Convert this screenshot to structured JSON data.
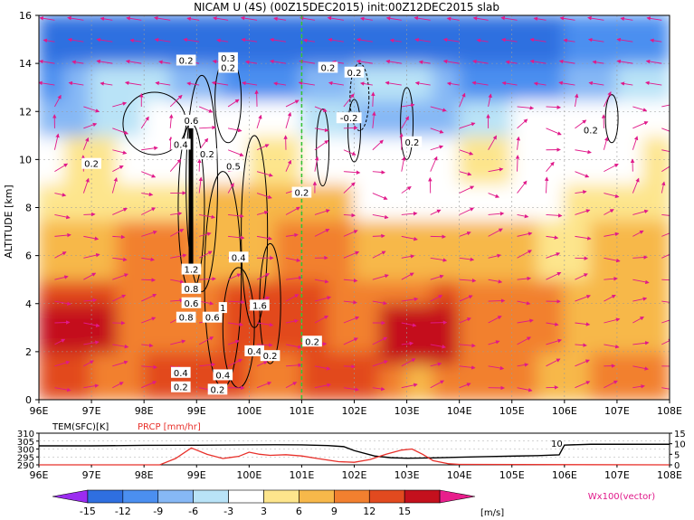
{
  "title": "NICAM U (4S) (00Z15DEC2015) init:00Z12DEC2015 slab",
  "chart_data": [
    {
      "type": "heatmap",
      "title": "NICAM U (4S) (00Z15DEC2015) init:00Z12DEC2015 slab",
      "ylabel": "ALTITUDE [km]",
      "x_ticks": [
        "96E",
        "97E",
        "98E",
        "99E",
        "100E",
        "101E",
        "102E",
        "103E",
        "104E",
        "105E",
        "106E",
        "107E",
        "108E"
      ],
      "y_ticks": [
        "0",
        "2",
        "4",
        "6",
        "8",
        "10",
        "12",
        "14",
        "16"
      ],
      "xlim": [
        96,
        108
      ],
      "ylim": [
        0,
        16
      ],
      "grid": true,
      "marker_line_lon": 101,
      "contour_labels": [
        {
          "text": "0.2",
          "lon": 98.8,
          "alt": 14.1
        },
        {
          "text": "0.3",
          "lon": 99.6,
          "alt": 14.2
        },
        {
          "text": "0.2",
          "lon": 99.6,
          "alt": 13.8
        },
        {
          "text": "0.2",
          "lon": 101.5,
          "alt": 13.8
        },
        {
          "text": "0.2",
          "lon": 102.0,
          "alt": 13.6
        },
        {
          "text": "-0.2",
          "lon": 101.9,
          "alt": 11.7
        },
        {
          "text": "0.2",
          "lon": 103.1,
          "alt": 10.7
        },
        {
          "text": "0.2",
          "lon": 106.5,
          "alt": 11.2
        },
        {
          "text": "0.6",
          "lon": 98.9,
          "alt": 11.6
        },
        {
          "text": "0.4",
          "lon": 98.7,
          "alt": 10.6
        },
        {
          "text": "0.2",
          "lon": 97.0,
          "alt": 9.8
        },
        {
          "text": "0.2",
          "lon": 99.2,
          "alt": 10.2
        },
        {
          "text": "0.5",
          "lon": 99.7,
          "alt": 9.7
        },
        {
          "text": "0.2",
          "lon": 101.0,
          "alt": 8.6
        },
        {
          "text": "0.4",
          "lon": 99.8,
          "alt": 5.9
        },
        {
          "text": "1.2",
          "lon": 98.9,
          "alt": 5.4
        },
        {
          "text": "0.8",
          "lon": 98.9,
          "alt": 4.6
        },
        {
          "text": "0.6",
          "lon": 98.9,
          "alt": 4.0
        },
        {
          "text": "0.6",
          "lon": 99.3,
          "alt": 3.4
        },
        {
          "text": "0.8",
          "lon": 98.8,
          "alt": 3.4
        },
        {
          "text": "1",
          "lon": 99.5,
          "alt": 3.8
        },
        {
          "text": "1.6",
          "lon": 100.2,
          "alt": 3.9
        },
        {
          "text": "0.2",
          "lon": 101.2,
          "alt": 2.4
        },
        {
          "text": "0.4",
          "lon": 100.1,
          "alt": 2.0
        },
        {
          "text": "0.2",
          "lon": 100.4,
          "alt": 1.8
        },
        {
          "text": "0.4",
          "lon": 98.7,
          "alt": 1.1
        },
        {
          "text": "0.4",
          "lon": 99.5,
          "alt": 1.0
        },
        {
          "text": "0.2",
          "lon": 98.7,
          "alt": 0.5
        },
        {
          "text": "0.2",
          "lon": 99.4,
          "alt": 0.4
        }
      ],
      "colorbar": {
        "ticks": [
          "-15",
          "-12",
          "-9",
          "-6",
          "-3",
          "3",
          "6",
          "9",
          "12",
          "15"
        ],
        "colors": [
          "#9b2cf0",
          "#2f6fe0",
          "#4b8ff0",
          "#86b8f5",
          "#b9e3f7",
          "#ffffff",
          "#fde58c",
          "#f7b84a",
          "#f2802f",
          "#e24a1f",
          "#c4101d",
          "#e81e8c"
        ],
        "unit": "[m/s]"
      },
      "vector_label": "Wx100(vector)"
    },
    {
      "type": "line",
      "series": [
        {
          "name": "TEM(SFC)[K]",
          "color": "#000000"
        },
        {
          "name": "PRCP [mm/hr]",
          "color": "#e8302a"
        }
      ],
      "left_ticks": [
        "310",
        "305",
        "300",
        "295",
        "290"
      ],
      "right_ticks": [
        "15",
        "10",
        "5",
        "0"
      ],
      "x_ticks": [
        "96E",
        "97E",
        "98E",
        "99E",
        "100E",
        "101E",
        "102E",
        "103E",
        "104E",
        "105E",
        "106E",
        "107E",
        "108E"
      ],
      "annotation": "10",
      "tem_points": [
        [
          96,
          302
        ],
        [
          97,
          302
        ],
        [
          98,
          302.3
        ],
        [
          99,
          302.4
        ],
        [
          100,
          302.6
        ],
        [
          100.5,
          302.7
        ],
        [
          101,
          302.6
        ],
        [
          101.5,
          302.2
        ],
        [
          101.8,
          301.5
        ],
        [
          102,
          299
        ],
        [
          102.4,
          295.5
        ],
        [
          102.7,
          294.5
        ],
        [
          103,
          294.2
        ],
        [
          103.5,
          294.4
        ],
        [
          104,
          294.8
        ],
        [
          104.5,
          295.2
        ],
        [
          105,
          295.5
        ],
        [
          105.5,
          295.8
        ],
        [
          105.9,
          296.3
        ],
        [
          106,
          302.5
        ],
        [
          106.5,
          303
        ],
        [
          108,
          303
        ]
      ],
      "prcp_points": [
        [
          96,
          0
        ],
        [
          98.3,
          0
        ],
        [
          98.6,
          3
        ],
        [
          98.9,
          8
        ],
        [
          99.2,
          5
        ],
        [
          99.5,
          3
        ],
        [
          99.8,
          4
        ],
        [
          100,
          6
        ],
        [
          100.2,
          5
        ],
        [
          100.4,
          4.5
        ],
        [
          100.7,
          4.8
        ],
        [
          101,
          4.2
        ],
        [
          101.3,
          3
        ],
        [
          101.7,
          1.5
        ],
        [
          102,
          1.2
        ],
        [
          102.3,
          2.5
        ],
        [
          102.6,
          5
        ],
        [
          102.9,
          7
        ],
        [
          103.1,
          7.5
        ],
        [
          103.3,
          5
        ],
        [
          103.5,
          2
        ],
        [
          103.8,
          0.5
        ],
        [
          104,
          0.2
        ],
        [
          108,
          0
        ]
      ]
    }
  ]
}
